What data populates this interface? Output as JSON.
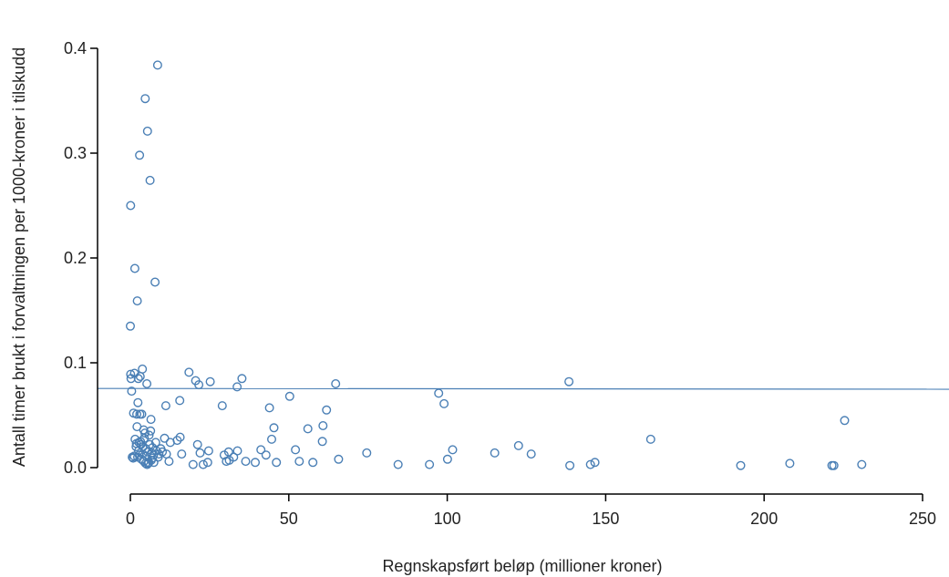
{
  "chart_data": {
    "type": "scatter",
    "title": "",
    "xlabel": "Regnskapsført beløp (millioner kroner)",
    "ylabel": "Antall timer brukt i forvaltningen per 1000-kroner i tilskudd",
    "xlim": [
      -10,
      260
    ],
    "ylim": [
      -0.025,
      0.41
    ],
    "xticks": [
      0,
      50,
      100,
      150,
      200,
      250
    ],
    "yticks": [
      0.0,
      0.1,
      0.2,
      0.3,
      0.4
    ],
    "xtick_labels": [
      "0",
      "50",
      "100",
      "150",
      "200",
      "250"
    ],
    "ytick_labels": [
      "0.0",
      "0.1",
      "0.2",
      "0.3",
      "0.4"
    ],
    "grid": false,
    "marker_color": "#4a7fb5",
    "reference_line": {
      "y_start": 0.0755,
      "y_end": 0.0748,
      "color": "#4a7fb5"
    },
    "points": [
      [
        8.6,
        0.384
      ],
      [
        4.7,
        0.352
      ],
      [
        5.4,
        0.321
      ],
      [
        2.9,
        0.298
      ],
      [
        6.2,
        0.274
      ],
      [
        0.1,
        0.25
      ],
      [
        1.4,
        0.19
      ],
      [
        7.8,
        0.177
      ],
      [
        2.2,
        0.159
      ],
      [
        0.0,
        0.135
      ],
      [
        0.1,
        0.089
      ],
      [
        0.2,
        0.085
      ],
      [
        0.4,
        0.073
      ],
      [
        1.3,
        0.09
      ],
      [
        2.5,
        0.085
      ],
      [
        3.8,
        0.094
      ],
      [
        3.1,
        0.087
      ],
      [
        5.2,
        0.08
      ],
      [
        18.5,
        0.091
      ],
      [
        20.6,
        0.083
      ],
      [
        21.6,
        0.079
      ],
      [
        25.2,
        0.082
      ],
      [
        35.2,
        0.085
      ],
      [
        33.7,
        0.077
      ],
      [
        64.8,
        0.08
      ],
      [
        97.3,
        0.071
      ],
      [
        99.0,
        0.061
      ],
      [
        138.4,
        0.082
      ],
      [
        2.4,
        0.062
      ],
      [
        11.2,
        0.059
      ],
      [
        15.6,
        0.064
      ],
      [
        29.0,
        0.059
      ],
      [
        43.9,
        0.057
      ],
      [
        50.3,
        0.068
      ],
      [
        61.9,
        0.055
      ],
      [
        1.0,
        0.052
      ],
      [
        2.0,
        0.051
      ],
      [
        3.0,
        0.051
      ],
      [
        3.6,
        0.051
      ],
      [
        6.5,
        0.046
      ],
      [
        60.8,
        0.04
      ],
      [
        56.0,
        0.037
      ],
      [
        45.3,
        0.038
      ],
      [
        2.1,
        0.039
      ],
      [
        4.2,
        0.036
      ],
      [
        4.6,
        0.033
      ],
      [
        5.9,
        0.031
      ],
      [
        60.6,
        0.025
      ],
      [
        44.6,
        0.027
      ],
      [
        52.1,
        0.017
      ],
      [
        74.6,
        0.014
      ],
      [
        101.7,
        0.017
      ],
      [
        115.0,
        0.014
      ],
      [
        122.5,
        0.021
      ],
      [
        126.5,
        0.013
      ],
      [
        164.2,
        0.027
      ],
      [
        225.4,
        0.045
      ],
      [
        1.5,
        0.027
      ],
      [
        2.7,
        0.024
      ],
      [
        3.3,
        0.022
      ],
      [
        4.0,
        0.02
      ],
      [
        4.9,
        0.018
      ],
      [
        5.5,
        0.015
      ],
      [
        6.7,
        0.014
      ],
      [
        7.3,
        0.012
      ],
      [
        8.2,
        0.016
      ],
      [
        9.0,
        0.013
      ],
      [
        10.1,
        0.015
      ],
      [
        11.4,
        0.013
      ],
      [
        10.8,
        0.028
      ],
      [
        12.6,
        0.024
      ],
      [
        14.8,
        0.026
      ],
      [
        16.2,
        0.013
      ],
      [
        15.7,
        0.029
      ],
      [
        21.2,
        0.022
      ],
      [
        22.0,
        0.014
      ],
      [
        24.7,
        0.016
      ],
      [
        29.6,
        0.012
      ],
      [
        31.0,
        0.015
      ],
      [
        32.6,
        0.01
      ],
      [
        33.8,
        0.016
      ],
      [
        41.2,
        0.017
      ],
      [
        42.8,
        0.012
      ],
      [
        0.9,
        0.009
      ],
      [
        1.2,
        0.011
      ],
      [
        2.3,
        0.01
      ],
      [
        3.5,
        0.008
      ],
      [
        4.3,
        0.006
      ],
      [
        4.8,
        0.004
      ],
      [
        5.3,
        0.003
      ],
      [
        5.8,
        0.005
      ],
      [
        6.6,
        0.007
      ],
      [
        7.4,
        0.005
      ],
      [
        8.8,
        0.01
      ],
      [
        12.2,
        0.006
      ],
      [
        19.8,
        0.003
      ],
      [
        23.0,
        0.003
      ],
      [
        24.4,
        0.005
      ],
      [
        30.3,
        0.006
      ],
      [
        31.2,
        0.007
      ],
      [
        36.4,
        0.006
      ],
      [
        39.4,
        0.005
      ],
      [
        46.1,
        0.005
      ],
      [
        53.3,
        0.006
      ],
      [
        57.6,
        0.005
      ],
      [
        65.7,
        0.008
      ],
      [
        84.5,
        0.003
      ],
      [
        94.4,
        0.003
      ],
      [
        100.1,
        0.008
      ],
      [
        138.7,
        0.002
      ],
      [
        145.2,
        0.003
      ],
      [
        146.6,
        0.005
      ],
      [
        192.6,
        0.002
      ],
      [
        208.1,
        0.004
      ],
      [
        221.4,
        0.002
      ],
      [
        222.0,
        0.002
      ],
      [
        230.8,
        0.003
      ],
      [
        1.8,
        0.02
      ],
      [
        2.6,
        0.016
      ],
      [
        3.9,
        0.013
      ],
      [
        5.0,
        0.011
      ],
      [
        6.1,
        0.022
      ],
      [
        7.0,
        0.019
      ],
      [
        8.0,
        0.024
      ],
      [
        6.4,
        0.035
      ],
      [
        4.4,
        0.028
      ],
      [
        3.2,
        0.025
      ],
      [
        1.9,
        0.023
      ],
      [
        0.6,
        0.01
      ],
      [
        2.8,
        0.012
      ],
      [
        5.6,
        0.004
      ],
      [
        6.9,
        0.009
      ],
      [
        9.6,
        0.018
      ]
    ]
  }
}
